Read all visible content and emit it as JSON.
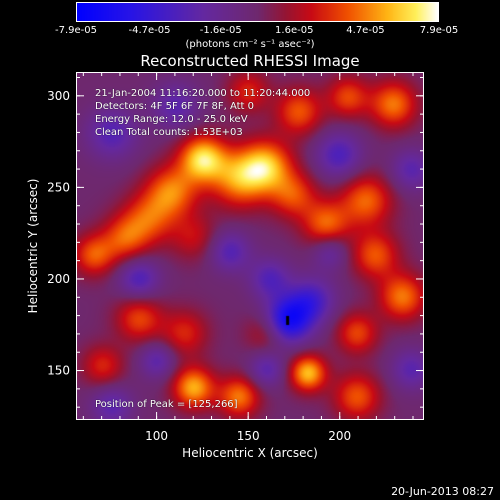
{
  "colorbar": {
    "tick_labels": [
      "-7.9e-05",
      "-4.7e-05",
      "-1.6e-05",
      "1.6e-05",
      "4.7e-05",
      "7.9e-05"
    ],
    "tick_values": [
      -7.9e-05,
      -4.7e-05,
      -1.6e-05,
      1.6e-05,
      4.7e-05,
      7.9e-05
    ],
    "range": [
      -7.9e-05,
      7.9e-05
    ]
  },
  "units_label": "(photons cm⁻² s⁻¹ asec⁻²)",
  "title": "Reconstructed RHESSI Image",
  "annotations": {
    "time": "21-Jan-2004 11:16:20.000 to 11:20:44.000",
    "detectors": "Detectors: 4F 5F 6F 7F 8F, Att 0",
    "energy": "Energy Range: 12.0 - 25.0 keV",
    "clean": "Clean    Total counts: 1.53E+03",
    "position": "Position of Peak = [125,266]"
  },
  "footer_timestamp": "20-Jun-2013 08:27",
  "chart_data": {
    "type": "heatmap",
    "title": "Reconstructed RHESSI Image",
    "xlabel": "Heliocentric X (arcsec)",
    "ylabel": "Heliocentric Y (arcsec)",
    "xlim": [
      56,
      246
    ],
    "ylim": [
      123,
      313
    ],
    "x_ticks": [
      100,
      150,
      200
    ],
    "x_tick_labels": [
      "100",
      "150",
      "200"
    ],
    "y_ticks": [
      150,
      200,
      250,
      300
    ],
    "y_tick_labels": [
      "150",
      "200",
      "250",
      "300"
    ],
    "colorbar_range": [
      -7.9e-05,
      7.9e-05
    ],
    "peak": {
      "x": 125,
      "y": 266
    },
    "colors": {
      "low": "#0000ff",
      "mid": "#6a2a9a",
      "high": "#ffffff"
    },
    "blobs": [
      {
        "x": 125,
        "y": 266,
        "amp": 1.0,
        "s": 9
      },
      {
        "x": 145,
        "y": 255,
        "amp": 0.75,
        "s": 11
      },
      {
        "x": 160,
        "y": 262,
        "amp": 0.85,
        "s": 10
      },
      {
        "x": 108,
        "y": 248,
        "amp": 0.7,
        "s": 10
      },
      {
        "x": 95,
        "y": 233,
        "amp": 0.55,
        "s": 10
      },
      {
        "x": 82,
        "y": 222,
        "amp": 0.55,
        "s": 9
      },
      {
        "x": 65,
        "y": 213,
        "amp": 0.6,
        "s": 8
      },
      {
        "x": 120,
        "y": 223,
        "amp": 0.35,
        "s": 9
      },
      {
        "x": 175,
        "y": 246,
        "amp": 0.55,
        "s": 9
      },
      {
        "x": 193,
        "y": 230,
        "amp": 0.65,
        "s": 9
      },
      {
        "x": 215,
        "y": 243,
        "amp": 0.65,
        "s": 10
      },
      {
        "x": 230,
        "y": 296,
        "amp": 0.7,
        "s": 9
      },
      {
        "x": 205,
        "y": 300,
        "amp": 0.55,
        "s": 8
      },
      {
        "x": 178,
        "y": 292,
        "amp": 0.6,
        "s": 9
      },
      {
        "x": 150,
        "y": 303,
        "amp": 0.45,
        "s": 8
      },
      {
        "x": 220,
        "y": 213,
        "amp": 0.6,
        "s": 9
      },
      {
        "x": 235,
        "y": 190,
        "amp": 0.7,
        "s": 9
      },
      {
        "x": 210,
        "y": 170,
        "amp": 0.55,
        "s": 8
      },
      {
        "x": 90,
        "y": 178,
        "amp": 0.55,
        "s": 9
      },
      {
        "x": 115,
        "y": 170,
        "amp": 0.45,
        "s": 9
      },
      {
        "x": 70,
        "y": 152,
        "amp": 0.45,
        "s": 8
      },
      {
        "x": 120,
        "y": 140,
        "amp": 0.85,
        "s": 8
      },
      {
        "x": 145,
        "y": 135,
        "amp": 0.7,
        "s": 8
      },
      {
        "x": 183,
        "y": 148,
        "amp": 0.9,
        "s": 7
      },
      {
        "x": 210,
        "y": 135,
        "amp": 0.6,
        "s": 9
      },
      {
        "x": 160,
        "y": 170,
        "amp": 0.35,
        "s": 8
      },
      {
        "x": 172,
        "y": 177,
        "amp": -1.0,
        "s": 9
      },
      {
        "x": 185,
        "y": 188,
        "amp": -0.6,
        "s": 9
      },
      {
        "x": 162,
        "y": 200,
        "amp": -0.5,
        "s": 8
      },
      {
        "x": 140,
        "y": 215,
        "amp": -0.5,
        "s": 8
      },
      {
        "x": 90,
        "y": 200,
        "amp": -0.55,
        "s": 8
      },
      {
        "x": 75,
        "y": 280,
        "amp": -0.5,
        "s": 10
      },
      {
        "x": 110,
        "y": 295,
        "amp": -0.45,
        "s": 9
      },
      {
        "x": 200,
        "y": 268,
        "amp": -0.55,
        "s": 9
      },
      {
        "x": 240,
        "y": 260,
        "amp": -0.45,
        "s": 8
      },
      {
        "x": 240,
        "y": 150,
        "amp": -0.45,
        "s": 8
      },
      {
        "x": 100,
        "y": 155,
        "amp": -0.45,
        "s": 7
      },
      {
        "x": 160,
        "y": 150,
        "amp": -0.45,
        "s": 7
      },
      {
        "x": 75,
        "y": 130,
        "amp": -0.45,
        "s": 8
      },
      {
        "x": 195,
        "y": 215,
        "amp": -0.4,
        "s": 7
      }
    ]
  }
}
